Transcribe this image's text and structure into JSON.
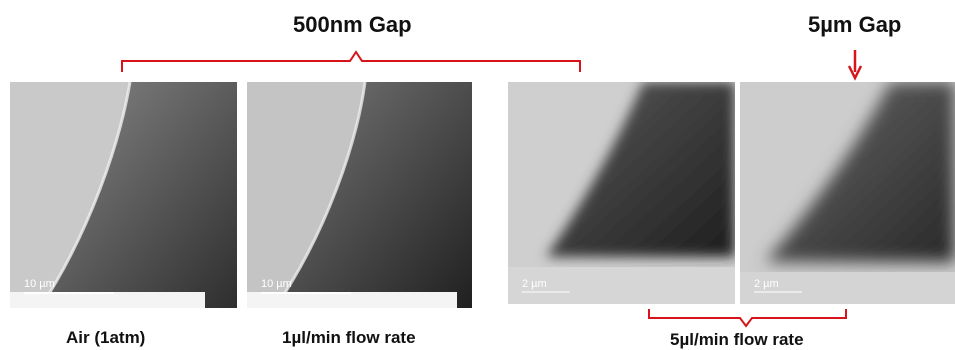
{
  "headings": {
    "left_gap": "500nm Gap",
    "right_gap": "5µm Gap"
  },
  "captions": {
    "panel1": "Air (1atm)",
    "panel2": "1µl/min flow rate",
    "panels34": "5µl/min flow rate"
  },
  "scale_labels": {
    "panel1": "10 µm",
    "panel2": "10 µm",
    "panel3": "2 µm",
    "panel4": "2 µm"
  },
  "colors": {
    "bracket": "#d7141a",
    "text": "#111111"
  }
}
